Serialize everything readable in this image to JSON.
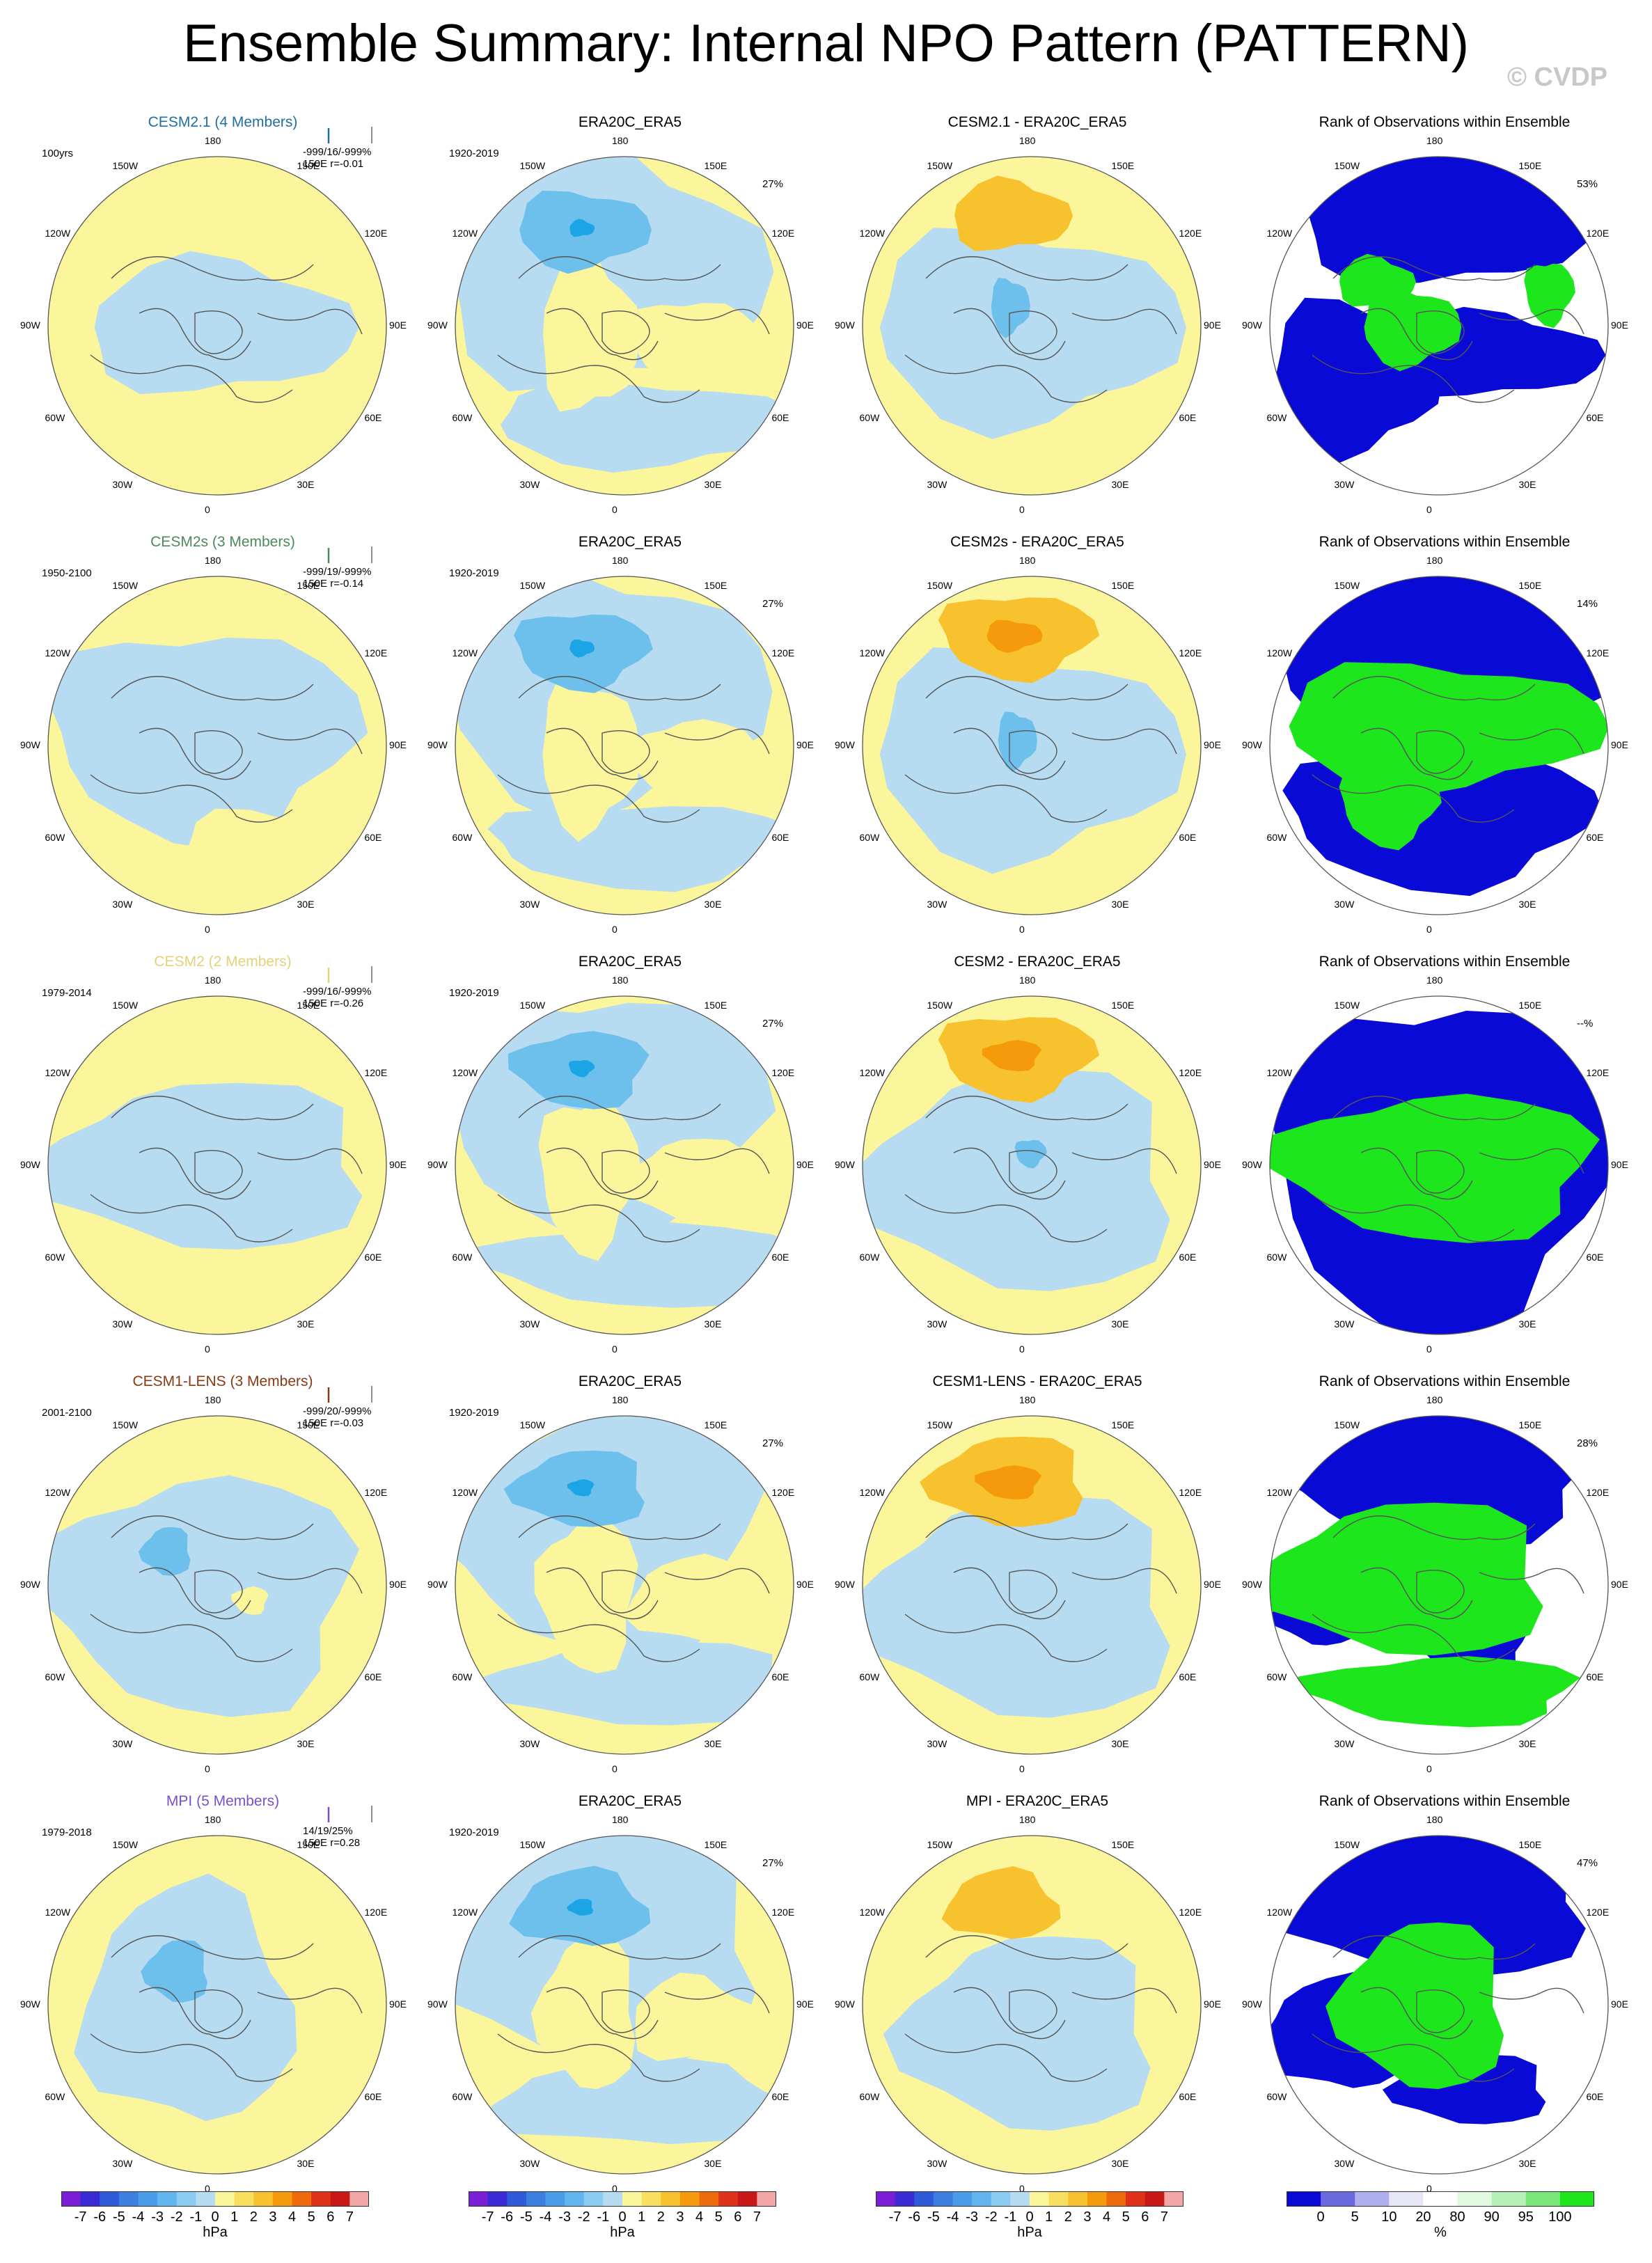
{
  "title": "Ensemble Summary: Internal NPO Pattern (PATTERN)",
  "watermark": "© CVDP",
  "colors": {
    "pos1": "#fbf59b",
    "pos2": "#f7c22e",
    "pos3": "#f59a0b",
    "neg1": "#b7dcf2",
    "neg2": "#6ec0ec",
    "neg3": "#1ba5e6",
    "rank_low": "#0a0ad6",
    "rank_high": "#1de61d",
    "land": "#555555"
  },
  "longitude_labels": [
    "180",
    "150E",
    "120E",
    "90E",
    "60E",
    "30E",
    "0",
    "30W",
    "60W",
    "90W",
    "120W",
    "150W"
  ],
  "rows": [
    {
      "model": {
        "title": "CESM2.1 (4 Members)",
        "color": "#1f6fa0",
        "period": "100yrs",
        "stats_line1": "-999/16/-999%",
        "stats_line2": "150E r=-0.01"
      },
      "obs": {
        "title": "ERA20C_ERA5",
        "period": "1920-2019",
        "pct": "27%"
      },
      "diff": {
        "title": "CESM2.1 - ERA20C_ERA5"
      },
      "rank": {
        "title": "Rank of Observations within Ensemble",
        "pct": "53%"
      }
    },
    {
      "model": {
        "title": "CESM2s (3 Members)",
        "color": "#4c8a5c",
        "period": "1950-2100",
        "stats_line1": "-999/19/-999%",
        "stats_line2": "150E r=-0.14"
      },
      "obs": {
        "title": "ERA20C_ERA5",
        "period": "1920-2019",
        "pct": "27%"
      },
      "diff": {
        "title": "CESM2s - ERA20C_ERA5"
      },
      "rank": {
        "title": "Rank of Observations within Ensemble",
        "pct": "14%"
      }
    },
    {
      "model": {
        "title": "CESM2 (2 Members)",
        "color": "#e4d27a",
        "period": "1979-2014",
        "stats_line1": "-999/16/-999%",
        "stats_line2": "150E r=-0.26"
      },
      "obs": {
        "title": "ERA20C_ERA5",
        "period": "1920-2019",
        "pct": "27%"
      },
      "diff": {
        "title": "CESM2 - ERA20C_ERA5"
      },
      "rank": {
        "title": "Rank of Observations within Ensemble",
        "pct": "--%"
      }
    },
    {
      "model": {
        "title": "CESM1-LENS (3 Members)",
        "color": "#8a3a12",
        "period": "2001-2100",
        "stats_line1": "-999/20/-999%",
        "stats_line2": "150E r=-0.03"
      },
      "obs": {
        "title": "ERA20C_ERA5",
        "period": "1920-2019",
        "pct": "27%"
      },
      "diff": {
        "title": "CESM1-LENS - ERA20C_ERA5"
      },
      "rank": {
        "title": "Rank of Observations within Ensemble",
        "pct": "28%"
      }
    },
    {
      "model": {
        "title": "MPI (5 Members)",
        "color": "#7a50c8",
        "period": "1979-2018",
        "stats_line1": "14/19/25%",
        "stats_line2": "150E r=0.28"
      },
      "obs": {
        "title": "ERA20C_ERA5",
        "period": "1920-2019",
        "pct": "27%"
      },
      "diff": {
        "title": "MPI - ERA20C_ERA5"
      },
      "rank": {
        "title": "Rank of Observations within Ensemble",
        "pct": "47%"
      }
    }
  ],
  "colorbar": {
    "ticks": [
      "-7",
      "-6",
      "-5",
      "-4",
      "-3",
      "-2",
      "-1",
      "0",
      "1",
      "2",
      "3",
      "4",
      "5",
      "6",
      "7"
    ],
    "unit": "hPa",
    "colors": [
      "#7b1fd6",
      "#3a2bd6",
      "#2f5ad9",
      "#3c7fe0",
      "#4a9be8",
      "#62b5ee",
      "#8ccbf2",
      "#b7dcf2",
      "#fbf59b",
      "#f9df5f",
      "#f7c22e",
      "#f59a0b",
      "#ef6a0a",
      "#e0311a",
      "#c81818",
      "#f3a7a7"
    ]
  },
  "rank_colorbar": {
    "ticks": [
      "0",
      "5",
      "10",
      "20",
      "80",
      "90",
      "95",
      "100"
    ],
    "unit": "%",
    "colors": [
      "#0a0ad6",
      "#6a6ae0",
      "#b0b0ee",
      "#e6e6f6",
      "#ffffff",
      "#e0fae0",
      "#b6f0b6",
      "#7ae67a",
      "#1de61d"
    ]
  }
}
